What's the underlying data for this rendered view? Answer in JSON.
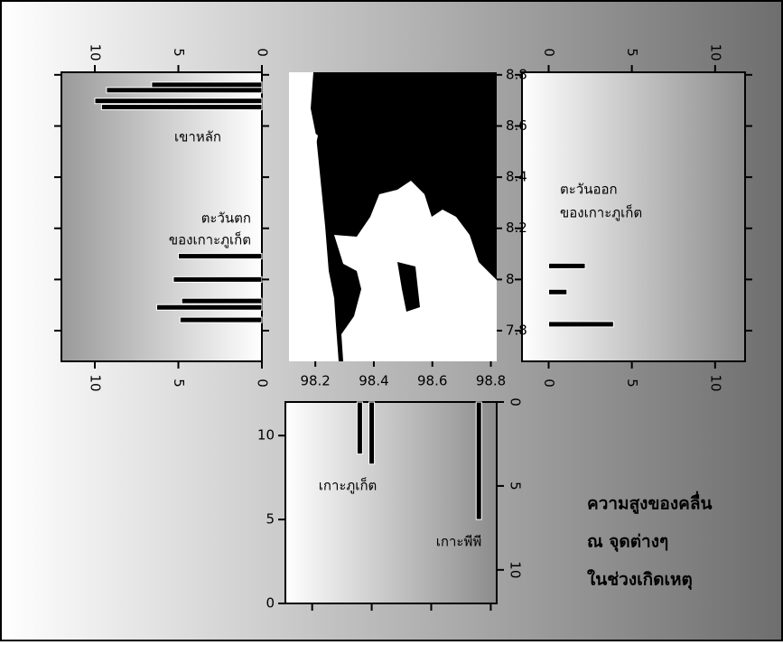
{
  "chart_data": [
    {
      "type": "bar",
      "orientation": "horizontal",
      "x_reversed": true,
      "y": [
        8.761,
        8.74,
        8.698,
        8.674,
        8.091,
        8.0,
        7.916,
        7.891,
        7.842
      ],
      "values": [
        6.6,
        9.3,
        10.0,
        9.6,
        5.0,
        5.3,
        4.8,
        6.3,
        4.9
      ],
      "xlim": [
        0,
        12
      ],
      "xticks": [
        0,
        5,
        10
      ],
      "ylim": [
        7.68,
        8.81
      ],
      "color": "#000000",
      "annotations": [
        "เขาหลัก",
        "ตะวันตก",
        "ของเกาะภูเก็ต"
      ]
    },
    {
      "type": "map",
      "xlim": [
        98.11,
        98.82
      ],
      "xticks": [
        98.2,
        98.4,
        98.6,
        98.8
      ],
      "ylim": [
        7.68,
        8.81
      ],
      "yticks": [
        7.8,
        8.0,
        8.2,
        8.4,
        8.6,
        8.8
      ]
    },
    {
      "type": "bar",
      "orientation": "horizontal",
      "x_reversed": false,
      "y": [
        8.053,
        7.951,
        7.825
      ],
      "values": [
        2.2,
        1.1,
        3.9
      ],
      "xlim": [
        -1.6,
        11.8
      ],
      "xticks": [
        0,
        5,
        10
      ],
      "ylim": [
        7.68,
        8.81
      ],
      "color": "#000000",
      "annotations": [
        "ตะวันออก",
        "ของเกาะภูเก็ต"
      ]
    },
    {
      "type": "bar",
      "orientation": "vertical",
      "x": [
        98.36,
        98.4,
        98.76
      ],
      "series": [
        {
          "axis": "y2",
          "color": "#000000",
          "values": [
            3.1,
            3.7,
            7.0
          ]
        }
      ],
      "xlim": [
        98.11,
        98.82
      ],
      "ylim": [
        0,
        12
      ],
      "yticks": [
        0,
        5,
        10
      ],
      "y2lim": [
        0,
        12
      ],
      "y2ticks": [
        0,
        5,
        10
      ],
      "y2_reversed": true,
      "annotations": [
        "เกาะภูเก็ต",
        "เกาะพีพี"
      ]
    }
  ],
  "caption": [
    "ความสูงของคลื่น",
    "ณ จุดต่างๆ",
    "ในช่วงเกิดเหตุ"
  ]
}
